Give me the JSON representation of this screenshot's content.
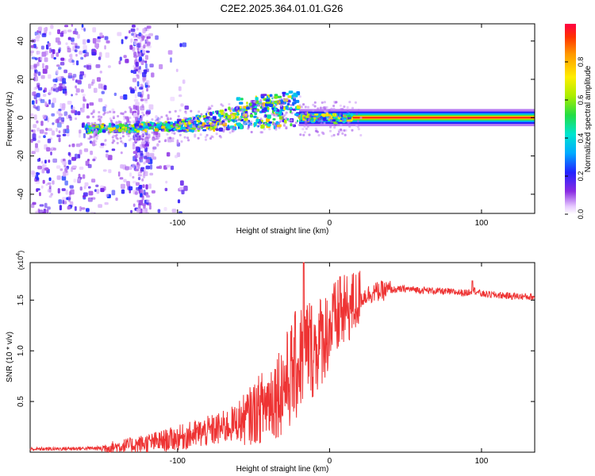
{
  "title": "C2E2.2025.364.01.01.G26",
  "chart_data": [
    {
      "type": "heatmap",
      "xlabel": "Height of straight line (km)",
      "ylabel": "Frequency (Hz)",
      "xlim": [
        -197,
        135
      ],
      "ylim": [
        -50,
        49
      ],
      "x_ticks": [
        -100,
        0,
        100
      ],
      "x_tick_labels": [
        "-100",
        "0",
        "100"
      ],
      "y_ticks": [
        -40,
        -20,
        0,
        20,
        40
      ],
      "y_tick_labels": [
        "-40",
        "-20",
        "0",
        "20",
        "40"
      ],
      "colorbar": {
        "label": "Normalized spectral amplitude",
        "range": [
          0,
          1
        ],
        "ticks": [
          0.0,
          0.2,
          0.4,
          0.6,
          0.8
        ],
        "tick_labels": [
          "0.0",
          "0.2",
          "0.4",
          "0.6",
          "0.8"
        ],
        "colormap": "rainbow-from-white"
      },
      "features": {
        "noise_region_x": [
          -197,
          -105
        ],
        "signal_start_x": -160,
        "signal_rise_end_x": -20,
        "steady_tone_x": [
          -20,
          135
        ],
        "steady_tone_frequency": 0
      }
    },
    {
      "type": "line",
      "xlabel": "Height of straight line (km)",
      "ylabel": "SNR (10 * v/v)",
      "y_multiplier_label": "(x10",
      "y_multiplier_exp": "4",
      "y_multiplier_close": ")",
      "xlim": [
        -197,
        135
      ],
      "ylim": [
        0,
        18700
      ],
      "x_ticks": [
        -100,
        0,
        100
      ],
      "x_tick_labels": [
        "-100",
        "0",
        "100"
      ],
      "y_ticks": [
        5000,
        10000,
        15000
      ],
      "y_tick_labels": [
        "0.5",
        "1.0",
        "1.5"
      ],
      "series": [
        {
          "name": "SNR",
          "color": "#ee3333",
          "x": [
            -197,
            -150,
            -130,
            -110,
            -90,
            -70,
            -55,
            -45,
            -35,
            -28,
            -22,
            -18,
            -14,
            -10,
            -6,
            -2,
            2,
            6,
            10,
            14,
            18,
            24,
            30,
            40,
            50,
            60,
            70,
            80,
            90,
            95,
            100,
            110,
            120,
            135
          ],
          "values": [
            300,
            400,
            700,
            1100,
            1700,
            2400,
            3300,
            4400,
            5800,
            7000,
            8500,
            9600,
            10600,
            10000,
            11000,
            11800,
            12600,
            13300,
            13800,
            14400,
            14900,
            15500,
            15800,
            16000,
            16100,
            16000,
            15900,
            15800,
            15700,
            16000,
            15600,
            15500,
            15400,
            15300
          ]
        }
      ],
      "highlights": [
        {
          "x": -17,
          "value": 18700
        },
        {
          "x": 7,
          "value": 17300
        },
        {
          "x": 94,
          "value": 16900
        }
      ]
    }
  ],
  "colors": {
    "line": "#ee3333",
    "axis": "#000000",
    "background": "#ffffff"
  }
}
